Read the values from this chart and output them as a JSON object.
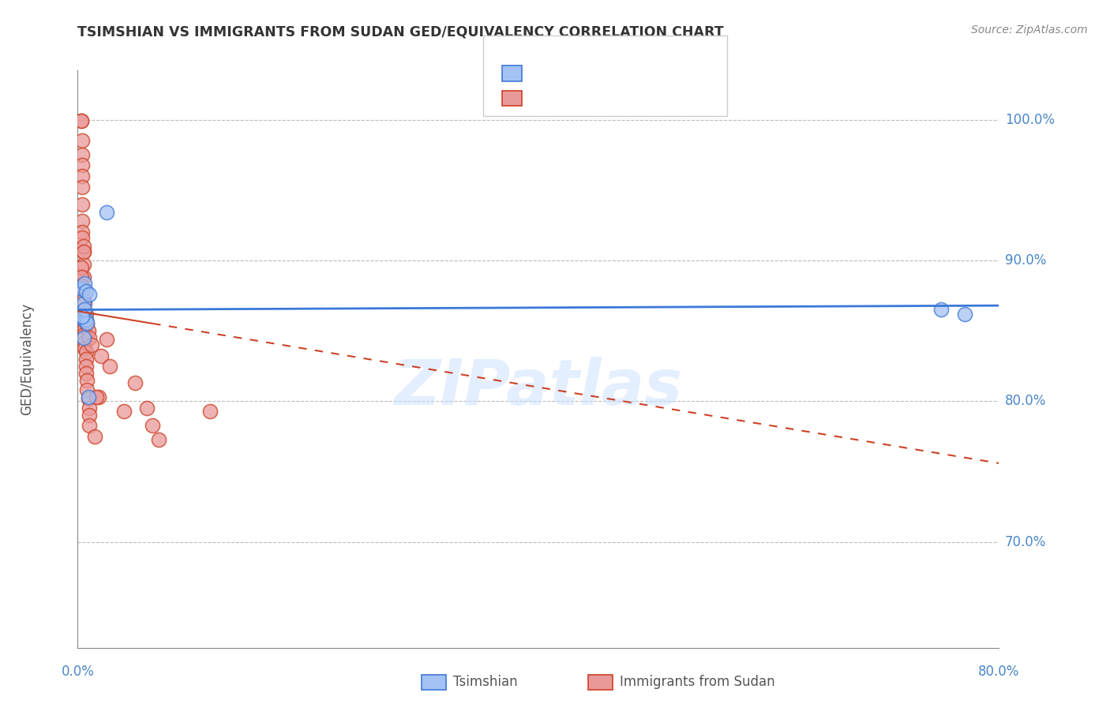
{
  "title": "TSIMSHIAN VS IMMIGRANTS FROM SUDAN GED/EQUIVALENCY CORRELATION CHART",
  "source": "Source: ZipAtlas.com",
  "ylabel": "GED/Equivalency",
  "xlim": [
    0.0,
    0.8
  ],
  "ylim": [
    0.625,
    1.035
  ],
  "legend_label1": "Tsimshian",
  "legend_label2": "Immigrants from Sudan",
  "watermark": "ZIPatlas",
  "blue_color": "#a4c2f4",
  "pink_color": "#ea9999",
  "blue_edge_color": "#3c78d8",
  "pink_edge_color": "#cc4125",
  "blue_line_color": "#3c78d8",
  "pink_line_color": "#cc4125",
  "grid_color": "#bbbbbb",
  "background_color": "#ffffff",
  "tsimshian_x": [
    0.004,
    0.005,
    0.005,
    0.006,
    0.007,
    0.007,
    0.008,
    0.009,
    0.01,
    0.025,
    0.75,
    0.77,
    0.005,
    0.006,
    0.004
  ],
  "tsimshian_y": [
    0.88,
    0.858,
    0.87,
    0.884,
    0.878,
    0.858,
    0.856,
    0.803,
    0.876,
    0.934,
    0.865,
    0.862,
    0.845,
    0.865,
    0.86
  ],
  "sudan_x": [
    0.003,
    0.003,
    0.004,
    0.004,
    0.004,
    0.004,
    0.004,
    0.004,
    0.004,
    0.005,
    0.005,
    0.005,
    0.005,
    0.005,
    0.005,
    0.005,
    0.006,
    0.006,
    0.006,
    0.006,
    0.006,
    0.007,
    0.007,
    0.007,
    0.007,
    0.008,
    0.008,
    0.009,
    0.01,
    0.01,
    0.01,
    0.015,
    0.018,
    0.02,
    0.025,
    0.04,
    0.05,
    0.06,
    0.115,
    0.003,
    0.003,
    0.003,
    0.004,
    0.004,
    0.005,
    0.005,
    0.006,
    0.006,
    0.007,
    0.008,
    0.009,
    0.01,
    0.012,
    0.016,
    0.028,
    0.065,
    0.07
  ],
  "sudan_y": [
    0.999,
    0.999,
    0.985,
    0.975,
    0.968,
    0.96,
    0.952,
    0.94,
    0.928,
    0.906,
    0.897,
    0.888,
    0.88,
    0.872,
    0.864,
    0.858,
    0.856,
    0.852,
    0.848,
    0.842,
    0.838,
    0.835,
    0.83,
    0.825,
    0.82,
    0.815,
    0.808,
    0.802,
    0.795,
    0.79,
    0.783,
    0.775,
    0.803,
    0.832,
    0.844,
    0.793,
    0.813,
    0.795,
    0.793,
    0.895,
    0.888,
    0.882,
    0.92,
    0.916,
    0.91,
    0.906,
    0.87,
    0.862,
    0.862,
    0.855,
    0.85,
    0.845,
    0.84,
    0.803,
    0.825,
    0.783,
    0.773
  ],
  "y_ticks": [
    0.7,
    0.8,
    0.9,
    1.0
  ],
  "y_tick_labels": [
    "70.0%",
    "80.0%",
    "90.0%",
    "100.0%"
  ],
  "x_ticks": [
    0.0,
    0.1,
    0.2,
    0.3,
    0.4,
    0.5,
    0.6,
    0.7,
    0.8
  ],
  "x_tick_show": [
    0.0,
    0.8
  ],
  "x_tick_show_labels": [
    "0.0%",
    "80.0%"
  ],
  "blue_line_y0": 0.865,
  "blue_line_y1": 0.868,
  "pink_line_y0": 0.864,
  "pink_line_y1": 0.756
}
